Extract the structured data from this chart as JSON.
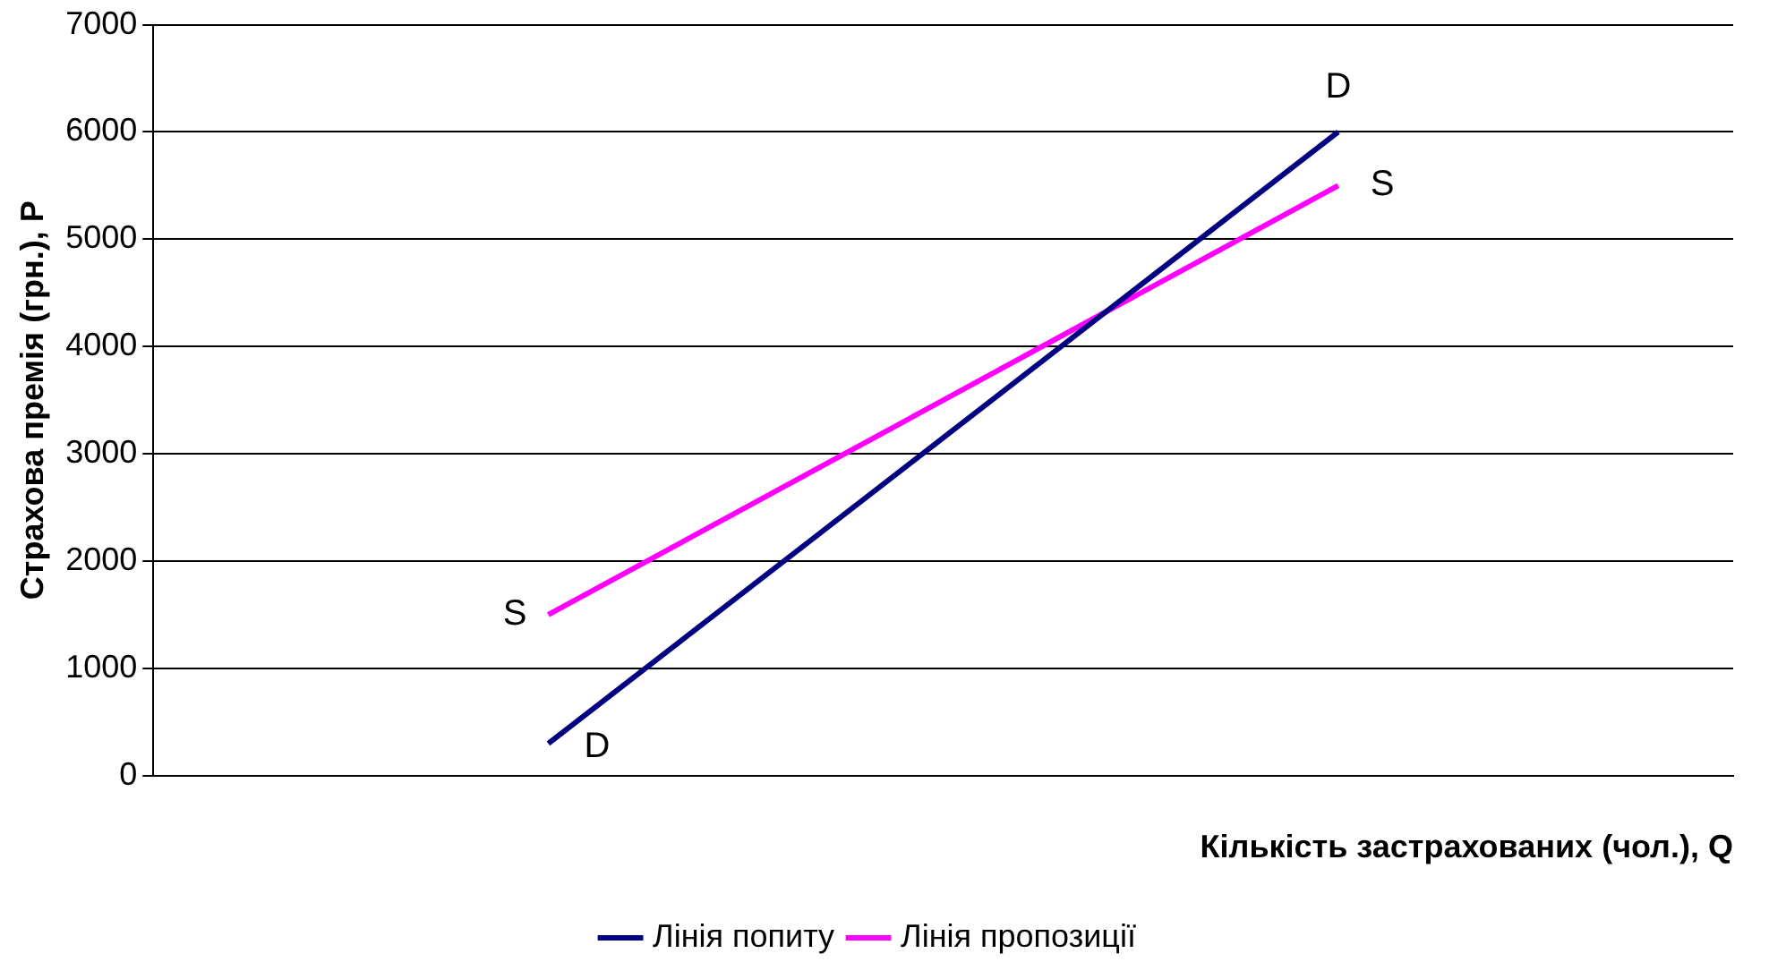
{
  "chart_data": {
    "type": "line",
    "xlabel": "Кількість застрахованих (чол.), Q",
    "ylabel": "Страхова премія (грн.), P",
    "categories": [
      null,
      null
    ],
    "series": [
      {
        "name": "Лінія попиту",
        "color": "#000080",
        "values": [
          300,
          6000
        ]
      },
      {
        "name": "Лінія пропозиції",
        "color": "#ff00ff",
        "values": [
          1500,
          5500
        ]
      }
    ],
    "ylim": [
      0,
      7000
    ],
    "yticks": [
      0,
      1000,
      2000,
      3000,
      4000,
      5000,
      6000,
      7000
    ],
    "grid": "y",
    "legend": "bottom",
    "marker": "none",
    "line_style": "solid",
    "tick_labels": "y",
    "annotations": [
      "D",
      "D",
      "S",
      "S"
    ]
  }
}
